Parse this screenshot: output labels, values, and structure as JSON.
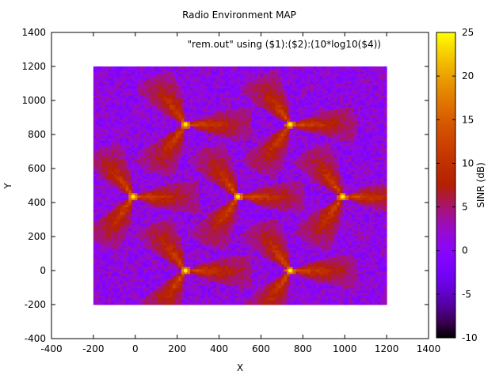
{
  "chart_data": {
    "type": "heatmap",
    "title": "Radio Environment MAP",
    "xlabel": "X",
    "ylabel": "Y",
    "legend_label": "\"rem.out\" using ($1):($2):(10*log10($4))",
    "colorbar_label": "SINR (dB)",
    "xlim": [
      -400,
      1400
    ],
    "ylim": [
      -400,
      1400
    ],
    "x_ticks": [
      -400,
      -200,
      0,
      200,
      400,
      600,
      800,
      1000,
      1200,
      1400
    ],
    "y_ticks": [
      -400,
      -200,
      0,
      200,
      400,
      600,
      800,
      1000,
      1200,
      1400
    ],
    "zlim": [
      -10,
      25
    ],
    "z_ticks": [
      -10,
      -5,
      0,
      5,
      10,
      15,
      20,
      25
    ],
    "colormap": "gnuplot pm3d (black-purple-red-orange-yellow)",
    "data_extent": {
      "x": [
        -200,
        1200
      ],
      "y": [
        -200,
        1200
      ]
    },
    "grid": false,
    "legend_position": "top-right",
    "base_stations": [
      {
        "x": 240,
        "y": 860
      },
      {
        "x": 740,
        "y": 860
      },
      {
        "x": -10,
        "y": 435
      },
      {
        "x": 490,
        "y": 435
      },
      {
        "x": 990,
        "y": 435
      },
      {
        "x": 240,
        "y": 0
      },
      {
        "x": 740,
        "y": 0
      }
    ],
    "sector_azimuths_deg": [
      0,
      120,
      240
    ],
    "background_sinr_db": [
      -2,
      4
    ],
    "sector_peak_sinr_db": 15,
    "station_peak_sinr_db": 22
  }
}
